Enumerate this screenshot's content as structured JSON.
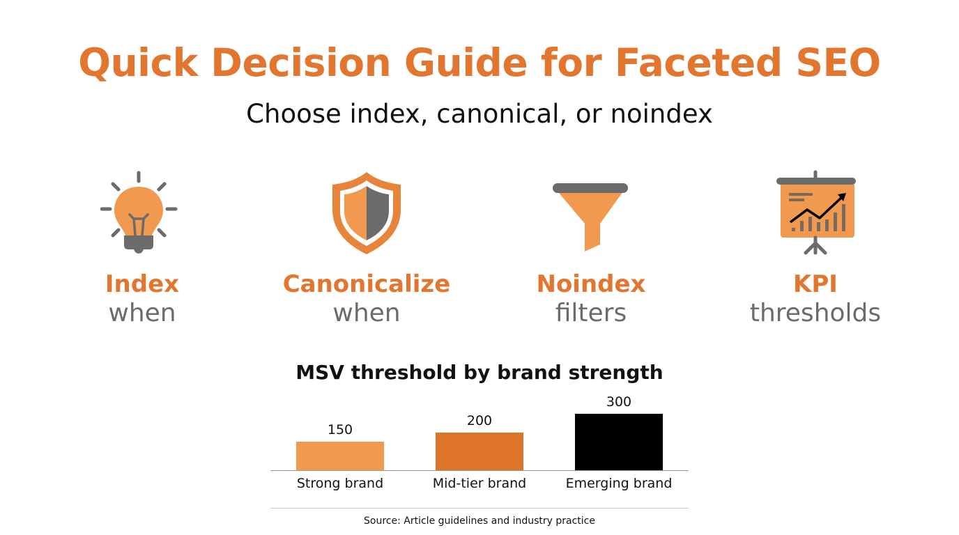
{
  "header": {
    "title": "Quick Decision Guide for Faceted SEO",
    "subtitle": "Choose index, canonical, or noindex"
  },
  "cards": [
    {
      "icon": "lightbulb-icon",
      "head": "Index",
      "sub": "when"
    },
    {
      "icon": "shield-icon",
      "head": "Canonicalize",
      "sub": "when"
    },
    {
      "icon": "funnel-icon",
      "head": "Noindex",
      "sub": "filters"
    },
    {
      "icon": "presentation-chart-icon",
      "head": "KPI",
      "sub": "thresholds"
    }
  ],
  "colors": {
    "accent": "#E2762E",
    "light_orange": "#F0994F",
    "mid_orange": "#E0742A",
    "black": "#000000",
    "icon_gray": "#6b6b6b"
  },
  "chart_data": {
    "type": "bar",
    "title": "MSV threshold by brand strength",
    "categories": [
      "Strong brand",
      "Mid-tier brand",
      "Emerging brand"
    ],
    "values": [
      150,
      200,
      300
    ],
    "value_labels": [
      "150",
      "200",
      "300"
    ],
    "bar_colors": [
      "#F0994F",
      "#E0742A",
      "#000000"
    ],
    "xlabel": "",
    "ylabel": "",
    "ylim": [
      0,
      300
    ],
    "grid": false,
    "legend": null,
    "source": "Source: Article guidelines and industry practice"
  }
}
